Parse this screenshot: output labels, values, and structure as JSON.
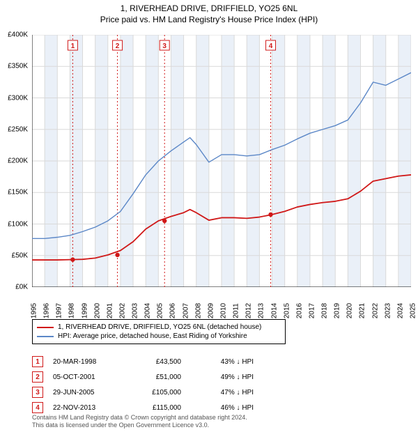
{
  "title": {
    "line1": "1, RIVERHEAD DRIVE, DRIFFIELD, YO25 6NL",
    "line2": "Price paid vs. HM Land Registry's House Price Index (HPI)"
  },
  "chart": {
    "type": "line",
    "background_color": "#ffffff",
    "band_color": "#eaf0f8",
    "grid_color": "#d9d9d9",
    "axis_color": "#000000",
    "text_color": "#000000",
    "years": [
      1995,
      1996,
      1997,
      1998,
      1999,
      2000,
      2001,
      2002,
      2003,
      2004,
      2005,
      2006,
      2007,
      2008,
      2009,
      2010,
      2011,
      2012,
      2013,
      2014,
      2015,
      2016,
      2017,
      2018,
      2019,
      2020,
      2021,
      2022,
      2023,
      2024,
      2025
    ],
    "y_ticks": [
      0,
      50000,
      100000,
      150000,
      200000,
      250000,
      300000,
      350000,
      400000
    ],
    "y_tick_labels": [
      "£0K",
      "£50K",
      "£100K",
      "£150K",
      "£200K",
      "£250K",
      "£300K",
      "£350K",
      "£400K"
    ],
    "ylim": [
      0,
      400000
    ],
    "xlim": [
      1995,
      2025
    ],
    "tick_fontsize": 10,
    "series": {
      "red": {
        "color": "#d01818",
        "line_width": 1.8,
        "label": "1, RIVERHEAD DRIVE, DRIFFIELD, YO25 6NL (detached house)",
        "x": [
          1995,
          1996,
          1997,
          1998,
          1999,
          2000,
          2001,
          2002,
          2003,
          2004,
          2005,
          2006,
          2007,
          2007.5,
          2008,
          2009,
          2010,
          2011,
          2012,
          2013,
          2014,
          2015,
          2016,
          2017,
          2018,
          2019,
          2020,
          2021,
          2022,
          2023,
          2024,
          2025
        ],
        "y": [
          43000,
          43000,
          43000,
          43500,
          44000,
          46000,
          51000,
          58000,
          72000,
          92000,
          105000,
          112000,
          118000,
          123000,
          118000,
          106000,
          110000,
          110000,
          109000,
          111000,
          115000,
          120000,
          127000,
          131000,
          134000,
          136000,
          140000,
          152000,
          168000,
          172000,
          176000,
          178000
        ]
      },
      "blue": {
        "color": "#5b87c7",
        "line_width": 1.4,
        "label": "HPI: Average price, detached house, East Riding of Yorkshire",
        "x": [
          1995,
          1996,
          1997,
          1998,
          1999,
          2000,
          2001,
          2002,
          2003,
          2004,
          2005,
          2006,
          2007,
          2007.5,
          2008,
          2009,
          2010,
          2011,
          2012,
          2013,
          2014,
          2015,
          2016,
          2017,
          2018,
          2019,
          2020,
          2021,
          2022,
          2023,
          2024,
          2025
        ],
        "y": [
          77000,
          77000,
          79000,
          82000,
          88000,
          95000,
          105000,
          120000,
          148000,
          178000,
          200000,
          216000,
          230000,
          237000,
          226000,
          198000,
          210000,
          210000,
          208000,
          210000,
          218000,
          225000,
          235000,
          244000,
          250000,
          256000,
          265000,
          292000,
          325000,
          320000,
          330000,
          340000
        ]
      }
    },
    "event_markers": [
      {
        "n": "1",
        "date": "20-MAR-1998",
        "price": "£43,500",
        "pct": "43% ↓ HPI",
        "x": 1998.22,
        "y": 43500
      },
      {
        "n": "2",
        "date": "05-OCT-2001",
        "price": "£51,000",
        "pct": "49% ↓ HPI",
        "x": 2001.76,
        "y": 51000
      },
      {
        "n": "3",
        "date": "29-JUN-2005",
        "price": "£105,000",
        "pct": "47% ↓ HPI",
        "x": 2005.49,
        "y": 105000
      },
      {
        "n": "4",
        "date": "22-NOV-2013",
        "price": "£115,000",
        "pct": "46% ↓ HPI",
        "x": 2013.89,
        "y": 115000
      }
    ],
    "marker_line_color": "#d01818",
    "marker_box_border": "#d01818",
    "marker_dot_fill": "#d01818",
    "marker_dot_radius": 3.2
  },
  "legend": {
    "border_color": "#000000"
  },
  "footer": {
    "line1": "Contains HM Land Registry data © Crown copyright and database right 2024.",
    "line2": "This data is licensed under the Open Government Licence v3.0."
  }
}
